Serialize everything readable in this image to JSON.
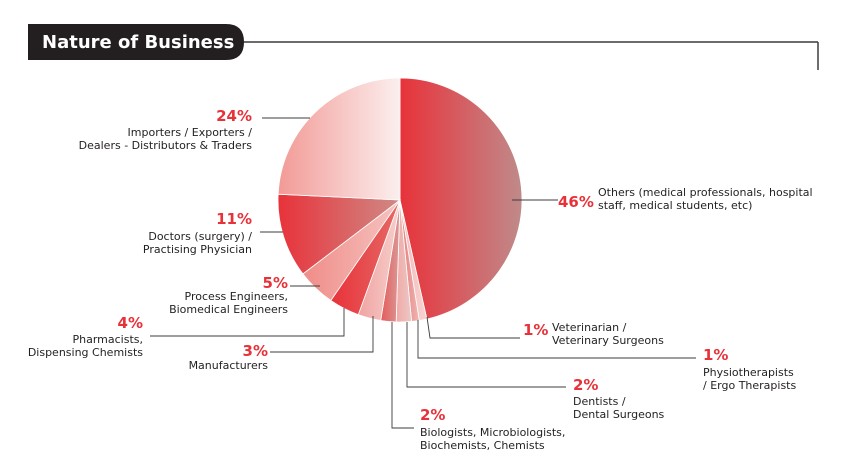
{
  "header": {
    "title": "Nature of Business"
  },
  "colors": {
    "accent": "#e8323a",
    "dark": "#231f20",
    "line": "#3c3c3c"
  },
  "chart_data": {
    "type": "pie",
    "title": "Nature of Business",
    "slices": [
      {
        "id": "others",
        "value": 46,
        "pct": "46%",
        "lines": [
          "Others (medical professionals, hospital",
          "staff, medical students, etc)"
        ]
      },
      {
        "id": "veterinarian",
        "value": 1,
        "pct": "1%",
        "lines": [
          "Veterinarian /",
          "Veterinary Surgeons"
        ]
      },
      {
        "id": "physio",
        "value": 1,
        "pct": "1%",
        "lines": [
          "Physiotherapists",
          "/ Ergo Therapists"
        ]
      },
      {
        "id": "dentists",
        "value": 2,
        "pct": "2%",
        "lines": [
          "Dentists /",
          "Dental Surgeons"
        ]
      },
      {
        "id": "biologists",
        "value": 2,
        "pct": "2%",
        "lines": [
          "Biologists, Microbiologists,",
          "Biochemists, Chemists"
        ]
      },
      {
        "id": "manufacturers",
        "value": 3,
        "pct": "3%",
        "lines": [
          "Manufacturers"
        ]
      },
      {
        "id": "pharmacists",
        "value": 4,
        "pct": "4%",
        "lines": [
          "Pharmacists,",
          "Dispensing Chemists"
        ]
      },
      {
        "id": "engineers",
        "value": 5,
        "pct": "5%",
        "lines": [
          "Process Engineers,",
          "Biomedical Engineers"
        ]
      },
      {
        "id": "doctors",
        "value": 11,
        "pct": "11%",
        "lines": [
          "Doctors (surgery) /",
          "Practising Physician"
        ]
      },
      {
        "id": "importers",
        "value": 24,
        "pct": "24%",
        "lines": [
          "Importers / Exporters /",
          "Dealers - Distributors & Traders"
        ]
      }
    ]
  }
}
